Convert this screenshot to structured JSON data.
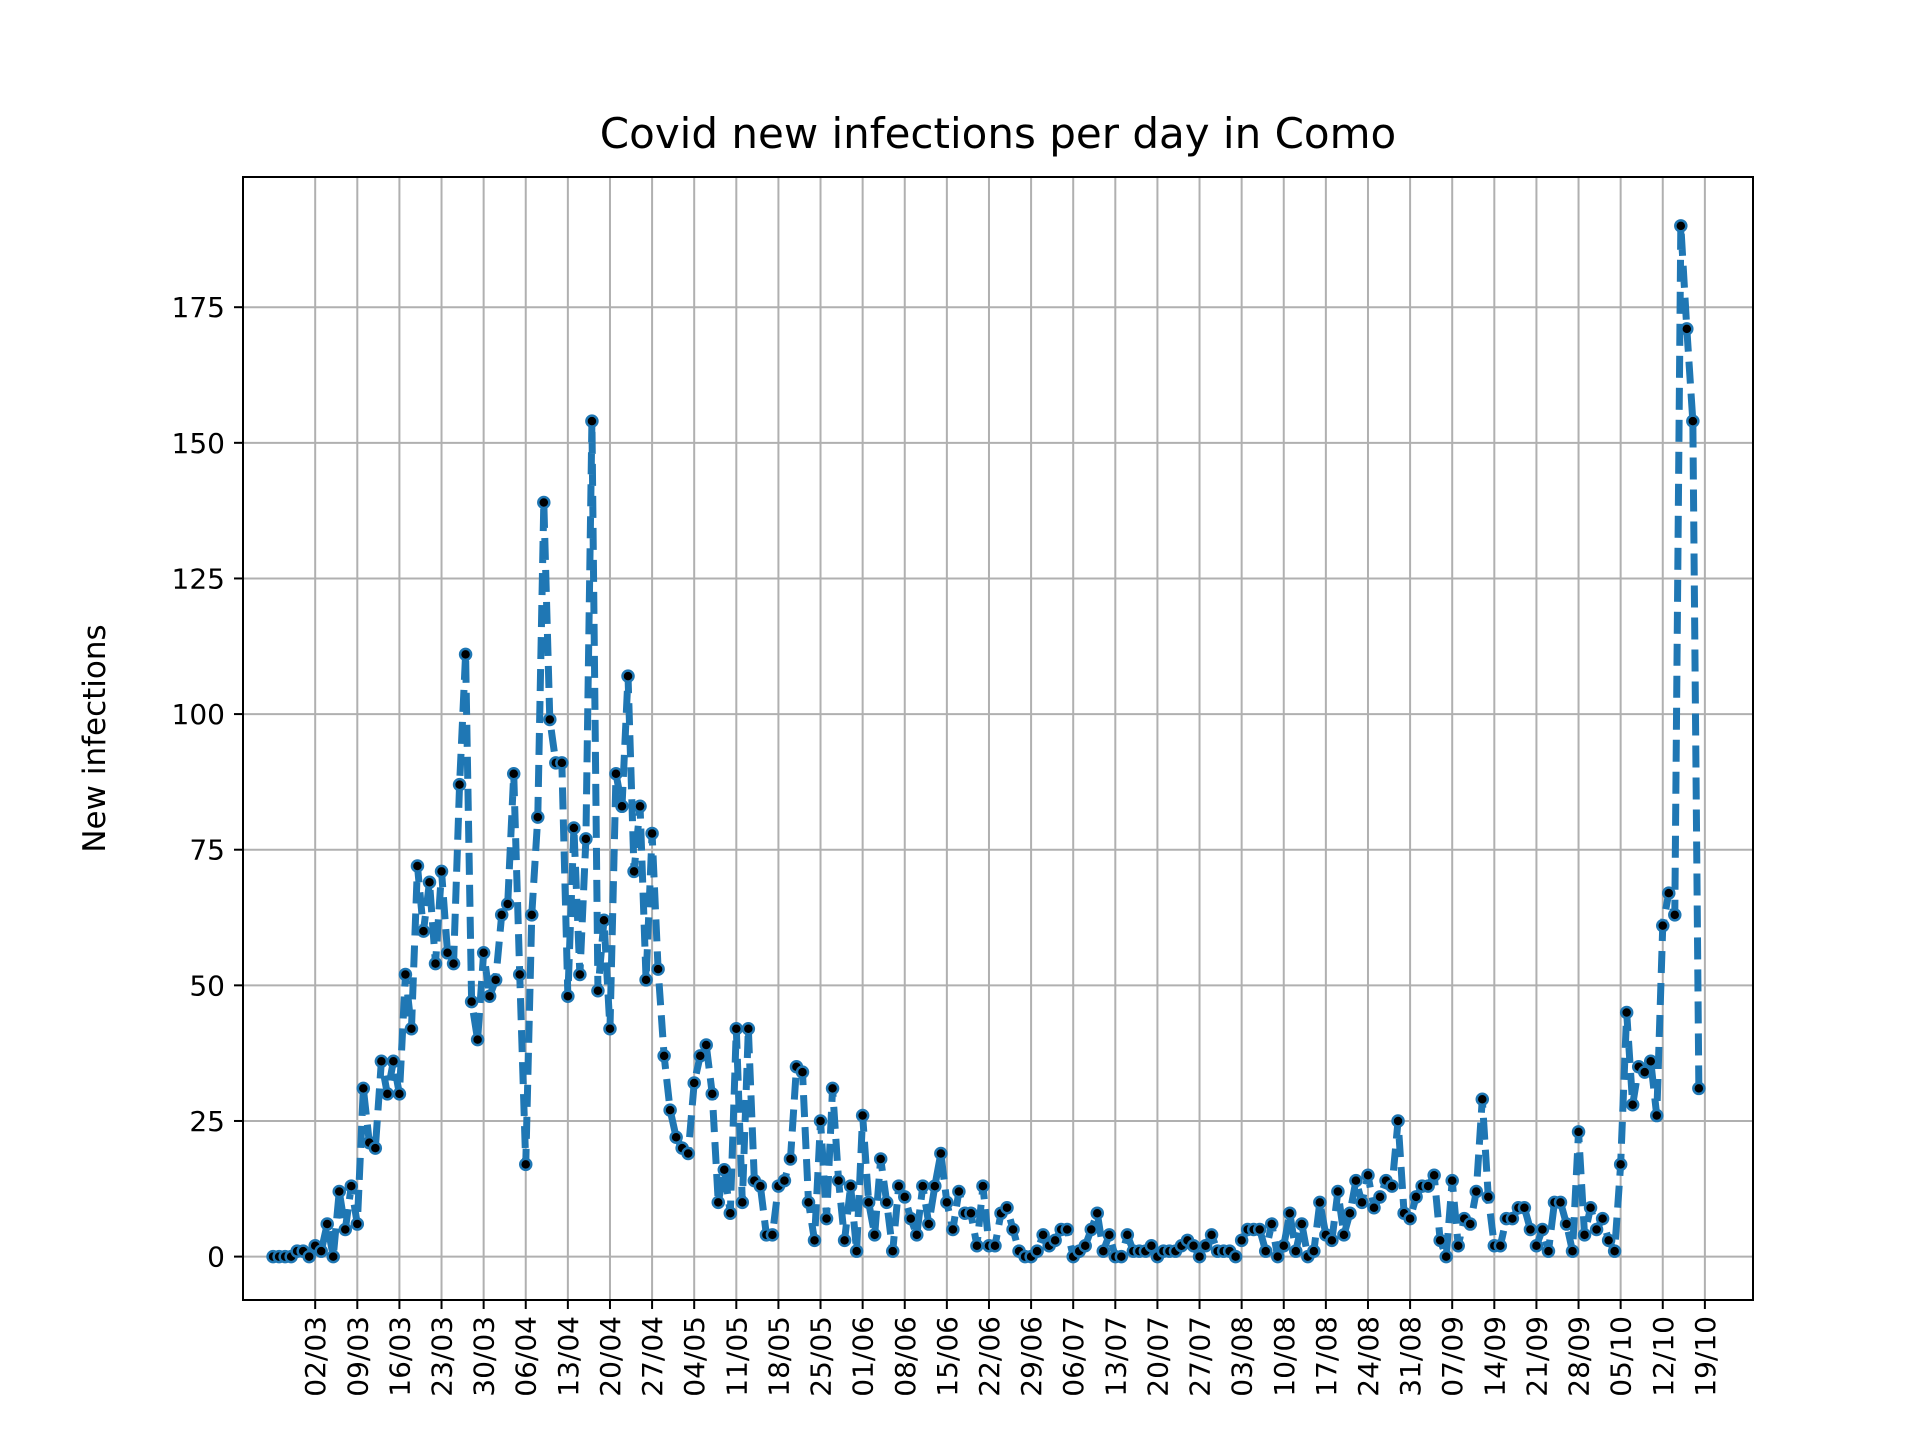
{
  "chart_data": {
    "type": "line",
    "title": "Covid new infections per day in Como",
    "xlabel": "",
    "ylabel": "New infections",
    "ylim": [
      -8,
      199
    ],
    "yticks": [
      0,
      25,
      50,
      75,
      100,
      125,
      150,
      175
    ],
    "grid": true,
    "line_style": "dashed",
    "marker": "dot",
    "colors": {
      "line": "#1f77b4",
      "marker": "#000000",
      "grid": "#b0b0b0"
    },
    "xlim": [
      "2020-02-19",
      "2020-10-27"
    ],
    "x_tick_labels": [
      "02/03",
      "09/03",
      "16/03",
      "23/03",
      "30/03",
      "06/04",
      "13/04",
      "20/04",
      "27/04",
      "04/05",
      "11/05",
      "18/05",
      "25/05",
      "01/06",
      "08/06",
      "15/06",
      "22/06",
      "29/06",
      "06/07",
      "13/07",
      "20/07",
      "27/07",
      "03/08",
      "10/08",
      "17/08",
      "24/08",
      "31/08",
      "07/09",
      "14/09",
      "21/09",
      "28/09",
      "05/10",
      "12/10",
      "19/10"
    ],
    "x_ticks": [
      "2020-03-02",
      "2020-03-09",
      "2020-03-16",
      "2020-03-23",
      "2020-03-30",
      "2020-04-06",
      "2020-04-13",
      "2020-04-20",
      "2020-04-27",
      "2020-05-04",
      "2020-05-11",
      "2020-05-18",
      "2020-05-25",
      "2020-06-01",
      "2020-06-08",
      "2020-06-15",
      "2020-06-22",
      "2020-06-29",
      "2020-07-06",
      "2020-07-13",
      "2020-07-20",
      "2020-07-27",
      "2020-08-03",
      "2020-08-10",
      "2020-08-17",
      "2020-08-24",
      "2020-08-31",
      "2020-09-07",
      "2020-09-14",
      "2020-09-21",
      "2020-09-28",
      "2020-10-05",
      "2020-10-12",
      "2020-10-19"
    ],
    "series": [
      {
        "x_start": "2020-02-24",
        "x_end": "2020-10-19",
        "values": [
          0,
          0,
          0,
          0,
          1,
          1,
          0,
          2,
          1,
          6,
          0,
          12,
          5,
          13,
          6,
          31,
          21,
          20,
          36,
          30,
          36,
          30,
          52,
          42,
          72,
          60,
          69,
          54,
          71,
          56,
          54,
          87,
          111,
          47,
          40,
          56,
          48,
          51,
          63,
          65,
          89,
          52,
          17,
          63,
          81,
          139,
          99,
          91,
          91,
          48,
          79,
          52,
          77,
          154,
          49,
          62,
          42,
          89,
          83,
          107,
          71,
          83,
          51,
          78,
          53,
          37,
          27,
          22,
          20,
          19,
          32,
          37,
          39,
          30,
          10,
          16,
          8,
          42,
          10,
          42,
          14,
          13,
          4,
          4,
          13,
          14,
          18,
          35,
          34,
          10,
          3,
          25,
          7,
          31,
          14,
          3,
          13,
          1,
          26,
          10,
          4,
          18,
          10,
          1,
          13,
          11,
          7,
          4,
          13,
          6,
          13,
          19,
          10,
          5,
          12,
          8,
          8,
          2,
          13,
          2,
          2,
          8,
          9,
          5,
          1,
          0,
          0,
          1,
          4,
          2,
          3,
          5,
          5,
          0,
          1,
          2,
          5,
          8,
          1,
          4,
          0,
          0,
          4,
          1,
          1,
          1,
          2,
          0,
          1,
          1,
          1,
          2,
          3,
          2,
          0,
          2,
          4,
          1,
          1,
          1,
          0,
          3,
          5,
          5,
          5,
          1,
          6,
          0,
          2,
          8,
          1,
          6,
          0,
          1,
          10,
          4,
          3,
          12,
          4,
          8,
          14,
          10,
          15,
          9,
          11,
          14,
          13,
          25,
          8,
          7,
          11,
          13,
          13,
          15,
          3,
          0,
          14,
          2,
          7,
          6,
          12,
          29,
          11,
          2,
          2,
          7,
          7,
          9,
          9,
          5,
          2,
          5,
          1,
          10,
          10,
          6,
          1,
          23,
          4,
          9,
          5,
          7,
          3,
          1,
          17,
          45,
          28,
          35,
          34,
          36,
          26,
          61,
          67,
          63,
          190,
          171,
          154,
          31
        ]
      }
    ]
  }
}
